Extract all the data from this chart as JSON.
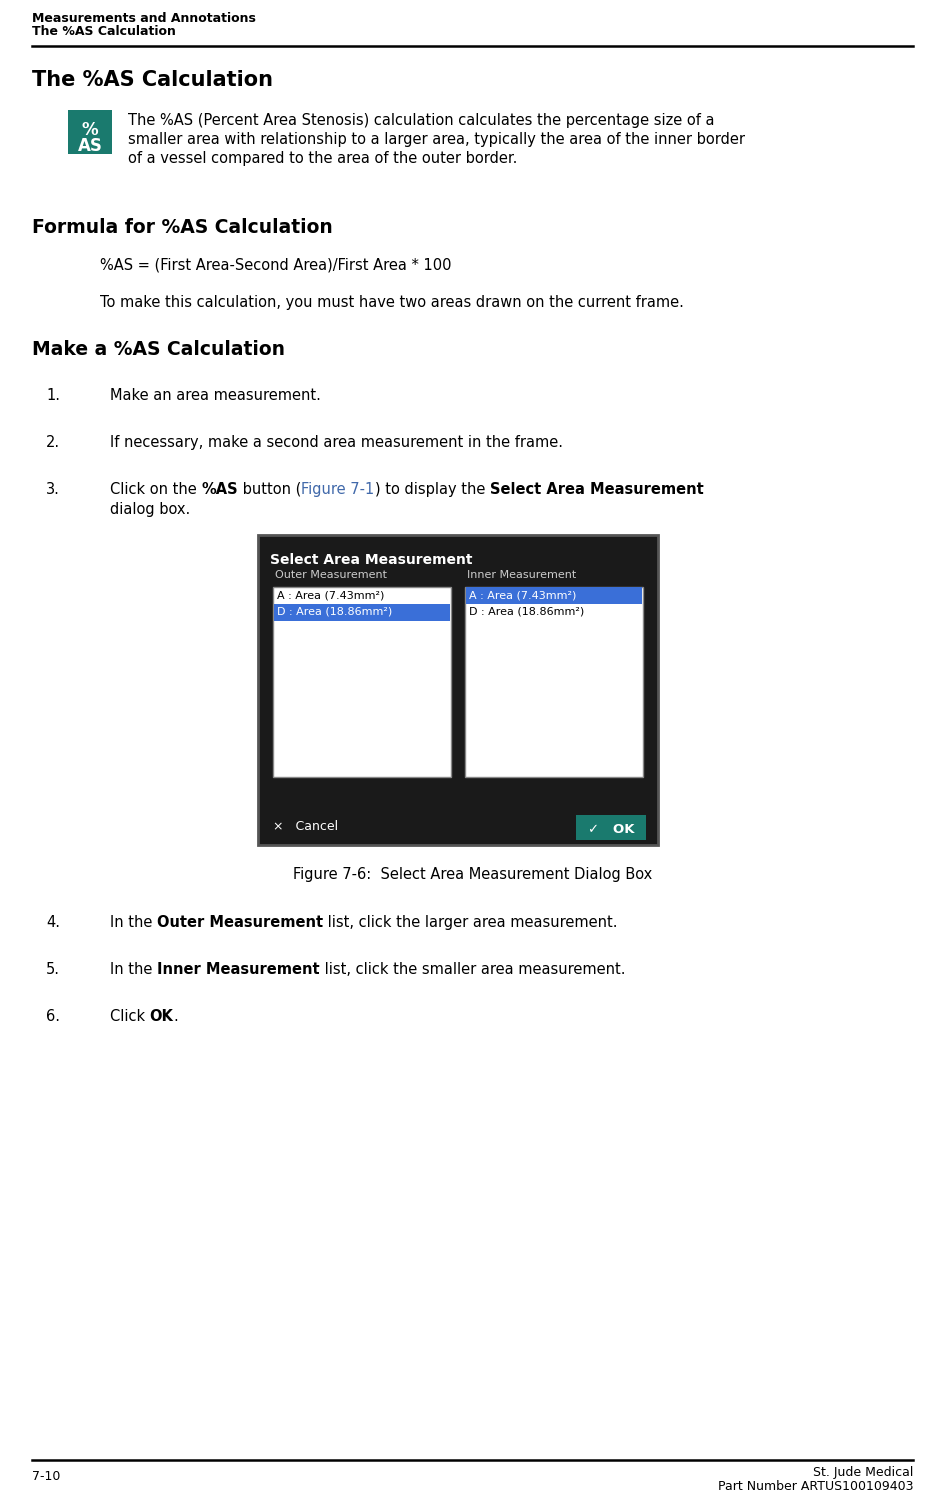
{
  "header_line1": "Measurements and Annotations",
  "header_line2": "The %AS Calculation",
  "footer_left": "7-10",
  "footer_right_line1": "St. Jude Medical",
  "footer_right_line2": "Part Number ARTUS100109403",
  "section1_title": "The %AS Calculation",
  "icon_color": "#1a7a6e",
  "icon_text_line1": "%",
  "icon_text_line2": "AS",
  "para1_lines": [
    "The %AS (Percent Area Stenosis) calculation calculates the percentage size of a",
    "smaller area with relationship to a larger area, typically the area of the inner border",
    "of a vessel compared to the area of the outer border."
  ],
  "section2_title": "Formula for %AS Calculation",
  "formula": "%AS = (First Area-Second Area)/First Area * 100",
  "para2": "To make this calculation, you must have two areas drawn on the current frame.",
  "section3_title": "Make a %AS Calculation",
  "figure_caption": "Figure 7-6:  Select Area Measurement Dialog Box",
  "bg_color": "#ffffff",
  "dialog_bg": "#1a1a1a",
  "dialog_title_text": "Select Area Measurement",
  "col1_label": "Outer Measurement",
  "col2_label": "Inner Measurement",
  "col1_item1": "A : Area (7.43mm²)",
  "col1_item2": "D : Area (18.86mm²)",
  "col2_item1": "A : Area (7.43mm²)",
  "col2_item2": "D : Area (18.86mm²)",
  "highlight_color": "#3a6fd8",
  "ok_color": "#1a7a6e",
  "link_color": "#4169aa"
}
